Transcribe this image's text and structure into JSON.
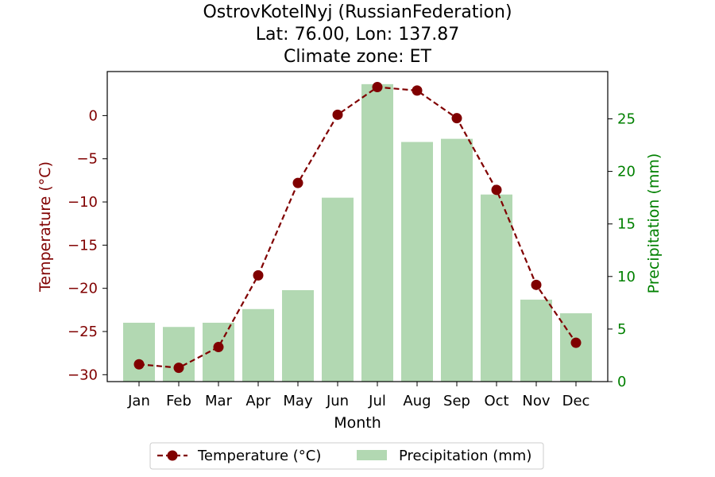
{
  "chart_data": {
    "type": "bar+line",
    "title_lines": [
      "OstrovKotelNyj (RussianFederation)",
      "Lat: 76.00, Lon: 137.87",
      "Climate zone: ET"
    ],
    "xlabel": "Month",
    "ylabel_left": "Temperature (°C)",
    "ylabel_right": "Precipitation (mm)",
    "categories": [
      "Jan",
      "Feb",
      "Mar",
      "Apr",
      "May",
      "Jun",
      "Jul",
      "Aug",
      "Sep",
      "Oct",
      "Nov",
      "Dec"
    ],
    "temperature": {
      "name": "Temperature (°C)",
      "color": "#800000",
      "style": "dashed-line-with-circle-markers",
      "values": [
        -28.8,
        -29.2,
        -26.8,
        -18.5,
        -7.8,
        0.1,
        3.3,
        2.9,
        -0.3,
        -8.6,
        -19.6,
        -26.3
      ]
    },
    "precipitation": {
      "name": "Precipitation (mm)",
      "color": "#b2d8b2",
      "values": [
        5.6,
        5.2,
        5.6,
        6.9,
        8.7,
        17.5,
        28.3,
        22.8,
        23.1,
        17.8,
        7.8,
        6.5
      ]
    },
    "y_left": {
      "range": [
        -30.8,
        5.1
      ],
      "ticks": [
        0,
        -5,
        -10,
        -15,
        -20,
        -25,
        -30
      ],
      "color": "#800000"
    },
    "y_right": {
      "range": [
        0,
        29.5
      ],
      "ticks": [
        0,
        5,
        10,
        15,
        20,
        25
      ],
      "color": "#008000"
    },
    "grid": false,
    "legend_position": "bottom-center"
  }
}
